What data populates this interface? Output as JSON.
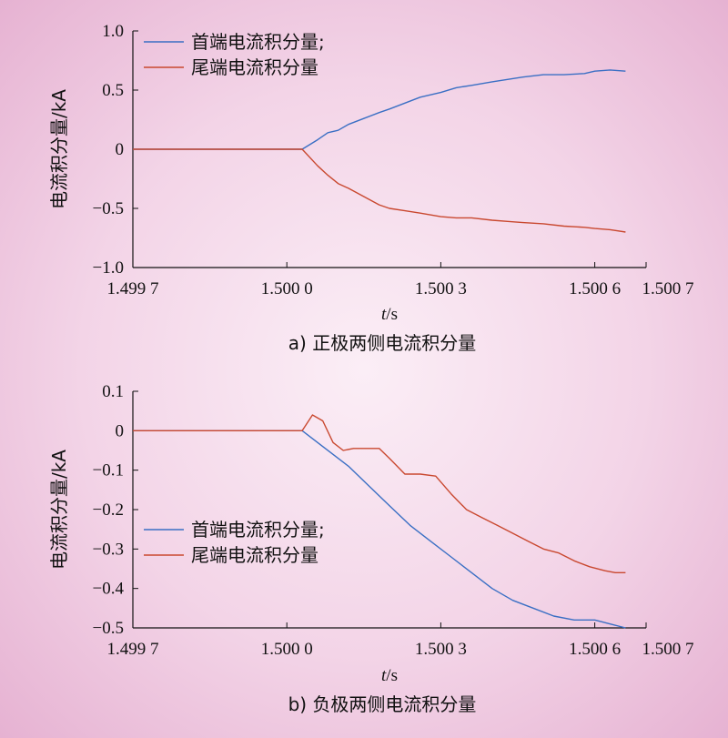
{
  "chart_data": [
    {
      "type": "line",
      "caption": "a) 正极两侧电流积分量",
      "xlabel_italic": "t",
      "xlabel_unit": "/s",
      "ylabel": "电流积分量/kA",
      "xlim": [
        1.4997,
        1.5007
      ],
      "ylim": [
        -1.0,
        1.0
      ],
      "xticks": [
        1.4997,
        1.5,
        1.5003,
        1.5006,
        1.5007
      ],
      "xtick_labels": [
        "1.499 7",
        "1.500 0",
        "1.500 3",
        "1.500 6",
        "1.500 7"
      ],
      "yticks": [
        1.0,
        0.5,
        0,
        -0.5,
        -1.0
      ],
      "ytick_labels": [
        "1.0",
        "0.5",
        "0",
        "−0.5",
        "−1.0"
      ],
      "legend_position": "top-left",
      "series": [
        {
          "name": "首端电流积分量;",
          "color": "#3a6fc4",
          "x": [
            1.4997,
            1.50003,
            1.50006,
            1.50008,
            1.5001,
            1.50012,
            1.50015,
            1.50018,
            1.5002,
            1.50023,
            1.50026,
            1.5003,
            1.50033,
            1.50036,
            1.5004,
            1.50043,
            1.50046,
            1.5005,
            1.50054,
            1.50058,
            1.5006,
            1.50063,
            1.50066
          ],
          "y": [
            0,
            0,
            0.08,
            0.14,
            0.16,
            0.21,
            0.26,
            0.31,
            0.34,
            0.39,
            0.44,
            0.48,
            0.52,
            0.54,
            0.57,
            0.59,
            0.61,
            0.63,
            0.63,
            0.64,
            0.66,
            0.67,
            0.66
          ]
        },
        {
          "name": "尾端电流积分量",
          "color": "#c9482f",
          "x": [
            1.4997,
            1.50003,
            1.50006,
            1.50008,
            1.5001,
            1.50012,
            1.50015,
            1.50018,
            1.5002,
            1.50023,
            1.50026,
            1.5003,
            1.50033,
            1.50036,
            1.5004,
            1.50043,
            1.50046,
            1.5005,
            1.50054,
            1.50058,
            1.5006,
            1.50063,
            1.50066
          ],
          "y": [
            0,
            0,
            -0.14,
            -0.22,
            -0.29,
            -0.33,
            -0.4,
            -0.47,
            -0.5,
            -0.52,
            -0.54,
            -0.57,
            -0.58,
            -0.58,
            -0.6,
            -0.61,
            -0.62,
            -0.63,
            -0.65,
            -0.66,
            -0.67,
            -0.68,
            -0.7
          ]
        }
      ]
    },
    {
      "type": "line",
      "caption": "b) 负极两侧电流积分量",
      "xlabel_italic": "t",
      "xlabel_unit": "/s",
      "ylabel": "电流积分量/kA",
      "xlim": [
        1.4997,
        1.5007
      ],
      "ylim": [
        -0.5,
        0.1
      ],
      "xticks": [
        1.4997,
        1.5,
        1.5003,
        1.5006,
        1.5007
      ],
      "xtick_labels": [
        "1.499 7",
        "1.500 0",
        "1.500 3",
        "1.500 6",
        "1.500 7"
      ],
      "yticks": [
        0.1,
        0,
        -0.1,
        -0.2,
        -0.3,
        -0.4,
        -0.5
      ],
      "ytick_labels": [
        "0.1",
        "0",
        "−0.1",
        "−0.2",
        "−0.3",
        "−0.4",
        "−0.5"
      ],
      "legend_position": "bottom-left",
      "series": [
        {
          "name": "首端电流积分量;",
          "color": "#3a6fc4",
          "x": [
            1.4997,
            1.50003,
            1.50007,
            1.50012,
            1.50016,
            1.5002,
            1.50024,
            1.50028,
            1.50032,
            1.50036,
            1.5004,
            1.50044,
            1.50048,
            1.50052,
            1.50056,
            1.5006,
            1.50063,
            1.50066
          ],
          "y": [
            0,
            0,
            -0.04,
            -0.09,
            -0.14,
            -0.19,
            -0.24,
            -0.28,
            -0.32,
            -0.36,
            -0.4,
            -0.43,
            -0.45,
            -0.47,
            -0.48,
            -0.48,
            -0.49,
            -0.5
          ]
        },
        {
          "name": "尾端电流积分量",
          "color": "#c9482f",
          "x": [
            1.4997,
            1.50003,
            1.50005,
            1.50007,
            1.50009,
            1.50011,
            1.50013,
            1.50016,
            1.50018,
            1.5002,
            1.50023,
            1.50026,
            1.50029,
            1.50032,
            1.50035,
            1.50038,
            1.50041,
            1.50044,
            1.50047,
            1.5005,
            1.50053,
            1.50056,
            1.50059,
            1.50062,
            1.50064,
            1.50066
          ],
          "y": [
            0,
            0,
            0.04,
            0.025,
            -0.03,
            -0.05,
            -0.045,
            -0.045,
            -0.045,
            -0.07,
            -0.11,
            -0.11,
            -0.115,
            -0.16,
            -0.2,
            -0.22,
            -0.24,
            -0.26,
            -0.28,
            -0.3,
            -0.31,
            -0.33,
            -0.345,
            -0.355,
            -0.36,
            -0.36
          ]
        }
      ]
    }
  ]
}
